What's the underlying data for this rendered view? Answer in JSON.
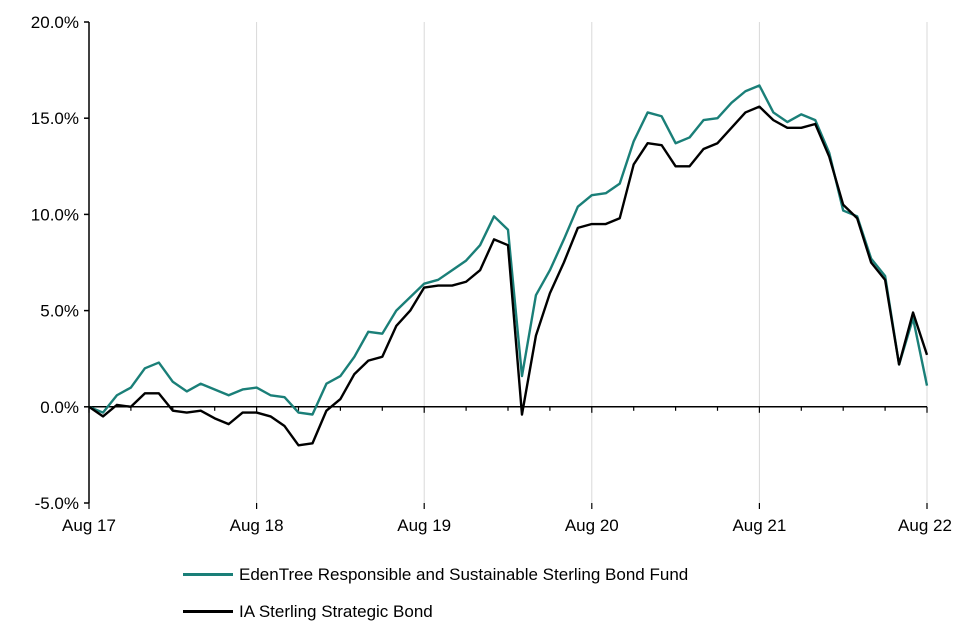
{
  "chart_data": {
    "type": "line",
    "title": "",
    "xlabel": "",
    "ylabel": "",
    "ylim": [
      -5,
      20
    ],
    "yticks": [
      -5,
      0,
      5,
      10,
      15,
      20
    ],
    "ytick_labels": [
      "-5.0%",
      "0.0%",
      "5.0%",
      "10.0%",
      "15.0%",
      "20.0%"
    ],
    "xlim": [
      0,
      60
    ],
    "xticks": [
      0,
      12,
      24,
      36,
      48,
      60
    ],
    "xtick_labels": [
      "Aug 17",
      "Aug 18",
      "Aug 19",
      "Aug 20",
      "Aug 21",
      "Aug 22"
    ],
    "grid": "vertical",
    "legend": "bottom",
    "x": [
      0,
      1,
      2,
      3,
      4,
      5,
      6,
      7,
      8,
      9,
      10,
      11,
      12,
      13,
      14,
      15,
      16,
      17,
      18,
      19,
      20,
      21,
      22,
      23,
      24,
      25,
      26,
      27,
      28,
      29,
      30,
      31,
      32,
      33,
      34,
      35,
      36,
      37,
      38,
      39,
      40,
      41,
      42,
      43,
      44,
      45,
      46,
      47,
      48,
      49,
      50,
      51,
      52,
      53,
      54,
      55,
      56,
      57,
      58,
      59,
      60
    ],
    "series": [
      {
        "name": "EdenTree Responsible and Sustainable Sterling Bond Fund",
        "color": "#1a7f78",
        "values": [
          0.0,
          -0.3,
          0.6,
          1.0,
          2.0,
          2.3,
          1.3,
          0.8,
          1.2,
          0.9,
          0.6,
          0.9,
          1.0,
          0.6,
          0.5,
          -0.3,
          -0.4,
          1.2,
          1.6,
          2.6,
          3.9,
          3.8,
          5.0,
          5.7,
          6.4,
          6.6,
          7.1,
          7.6,
          8.4,
          9.9,
          9.2,
          1.6,
          5.8,
          7.1,
          8.7,
          10.4,
          11.0,
          11.1,
          11.6,
          13.8,
          15.3,
          15.1,
          13.7,
          14.0,
          14.9,
          15.0,
          15.8,
          16.4,
          16.7,
          15.3,
          14.8,
          15.2,
          14.9,
          13.2,
          10.2,
          9.9,
          7.7,
          6.8,
          2.2,
          4.6,
          1.1
        ]
      },
      {
        "name": "IA Sterling Strategic Bond",
        "color": "#000000",
        "values": [
          0.0,
          -0.5,
          0.1,
          0.0,
          0.7,
          0.7,
          -0.2,
          -0.3,
          -0.2,
          -0.6,
          -0.9,
          -0.3,
          -0.3,
          -0.5,
          -1.0,
          -2.0,
          -1.9,
          -0.2,
          0.4,
          1.7,
          2.4,
          2.6,
          4.2,
          5.0,
          6.2,
          6.3,
          6.3,
          6.5,
          7.1,
          8.7,
          8.4,
          -0.4,
          3.7,
          5.9,
          7.5,
          9.3,
          9.5,
          9.5,
          9.8,
          12.6,
          13.7,
          13.6,
          12.5,
          12.5,
          13.4,
          13.7,
          14.5,
          15.3,
          15.6,
          14.9,
          14.5,
          14.5,
          14.7,
          13.0,
          10.5,
          9.8,
          7.5,
          6.6,
          2.2,
          4.9,
          2.7
        ]
      }
    ]
  }
}
